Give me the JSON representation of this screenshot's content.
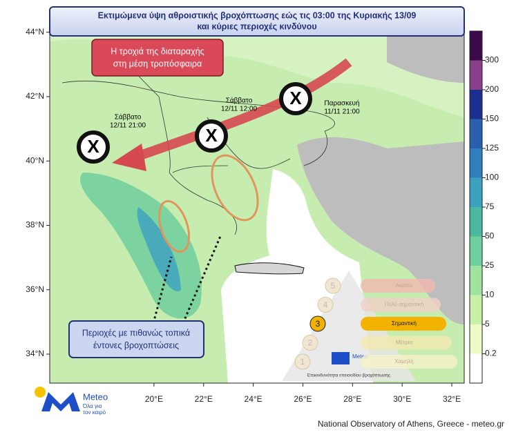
{
  "title": {
    "line1": "Εκτιμώμενα ύψη αθροιστικής βροχόπτωσης εώς τις 03:00 της Κυριακής 13/09",
    "line2": "και κύριες περιοχές κινδύνου"
  },
  "track_box": {
    "line1": "Η τροχιά της διαταραχής",
    "line2": "στη μέση τροπόσφαιρα"
  },
  "markers": [
    {
      "symbol": "X",
      "day": "Σάββατο",
      "time": "12/11 21:00"
    },
    {
      "symbol": "X",
      "day": "Σάββατο",
      "time": "12/11 12:00"
    },
    {
      "symbol": "X",
      "day": "Παρασκευή",
      "time": "11/11 21:00"
    }
  ],
  "risk_box": {
    "line1": "Περιοχές με πιθανώς τοπικά",
    "line2": "έντονες βροχοπτώσεις"
  },
  "map": {
    "lon_lim": [
      15.8,
      32.5
    ],
    "lat_lim": [
      33.1,
      44.1
    ],
    "lat_ticks": [
      {
        "value": 44,
        "label": "44°N"
      },
      {
        "value": 42,
        "label": "42°N"
      },
      {
        "value": 40,
        "label": "40°N"
      },
      {
        "value": 38,
        "label": "38°N"
      },
      {
        "value": 36,
        "label": "36°N"
      },
      {
        "value": 34,
        "label": "34°N"
      }
    ],
    "lon_ticks": [
      {
        "value": 20,
        "label": "20°E"
      },
      {
        "value": 22,
        "label": "22°E"
      },
      {
        "value": 24,
        "label": "24°E"
      },
      {
        "value": 26,
        "label": "26°E"
      },
      {
        "value": 28,
        "label": "28°E"
      },
      {
        "value": 30,
        "label": "30°E"
      },
      {
        "value": 32,
        "label": "32°E"
      }
    ]
  },
  "colorbar": {
    "levels": [
      0.2,
      5,
      10,
      25,
      50,
      75,
      100,
      125,
      150,
      200,
      300
    ],
    "colors": [
      "#ffffff",
      "#eef9c8",
      "#c8f0a8",
      "#a0e3a0",
      "#6fcf9c",
      "#4bb9a2",
      "#3ca0bf",
      "#2f7fc0",
      "#2a5fae",
      "#1c2e8e",
      "#8a3f8a",
      "#3a0a4a"
    ]
  },
  "risk_scale": {
    "caption": "Επικινδυνότητα επεισοδίου βροχόπτωσης",
    "brand": "Meteo",
    "levels": [
      {
        "number": "1",
        "label": "Χαμηλή",
        "color": "#f6f2c8"
      },
      {
        "number": "2",
        "label": "Μέτρια",
        "color": "#f3eab0"
      },
      {
        "number": "3",
        "label": "Σημαντική",
        "color": "#f3b200"
      },
      {
        "number": "4",
        "label": "Πολύ σημαντική",
        "color": "#f3d0c8"
      },
      {
        "number": "5",
        "label": "Ακραία",
        "color": "#f3b8b0"
      }
    ]
  },
  "logo": {
    "name": "Meteo",
    "tagline1": "Όλα για",
    "tagline2": "τον καιρό"
  },
  "footer": "National Observatory of Athens, Greece - meteo.gr"
}
